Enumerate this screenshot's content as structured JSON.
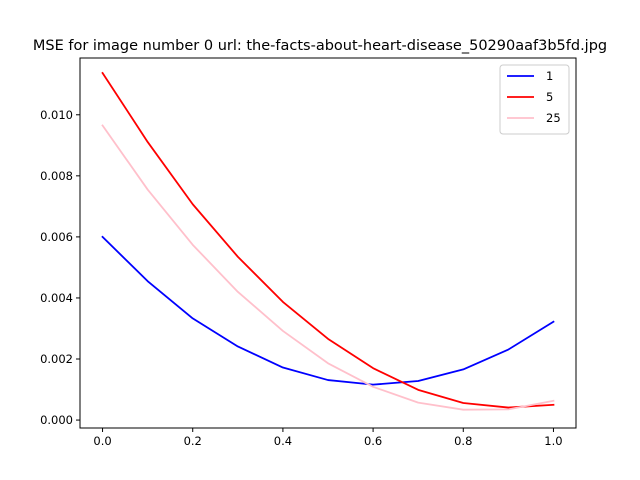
{
  "chart_data": {
    "type": "line",
    "title": "MSE for image number 0 url: the-facts-about-heart-disease_50290aaf3b5fd.jpg",
    "xlabel": "",
    "ylabel": "",
    "x": [
      0.0,
      0.1,
      0.2,
      0.3,
      0.4,
      0.5,
      0.6,
      0.7,
      0.8,
      0.9,
      1.0
    ],
    "xlim": [
      -0.05,
      1.05
    ],
    "ylim": [
      -0.00026,
      0.01186
    ],
    "xticks": [
      0.0,
      0.2,
      0.4,
      0.6,
      0.8,
      1.0
    ],
    "xtick_labels": [
      "0.0",
      "0.2",
      "0.4",
      "0.6",
      "0.8",
      "1.0"
    ],
    "yticks": [
      0.0,
      0.002,
      0.004,
      0.006,
      0.008,
      0.01
    ],
    "ytick_labels": [
      "0.000",
      "0.002",
      "0.004",
      "0.006",
      "0.008",
      "0.010"
    ],
    "grid": false,
    "legend_position": "top-right",
    "series": [
      {
        "name": "1",
        "color": "#0000ff",
        "values": [
          0.006,
          0.00455,
          0.00333,
          0.00241,
          0.00172,
          0.00131,
          0.00116,
          0.00128,
          0.00166,
          0.00231,
          0.00322
        ]
      },
      {
        "name": "5",
        "color": "#ff0000",
        "values": [
          0.01137,
          0.00911,
          0.00707,
          0.00535,
          0.00387,
          0.00266,
          0.0017,
          0.00099,
          0.00056,
          0.00041,
          0.0005
        ]
      },
      {
        "name": "25",
        "color": "#ffc0cb",
        "values": [
          0.00965,
          0.00755,
          0.00574,
          0.0042,
          0.00292,
          0.00186,
          0.00109,
          0.00057,
          0.00034,
          0.00035,
          0.00063
        ]
      }
    ]
  }
}
